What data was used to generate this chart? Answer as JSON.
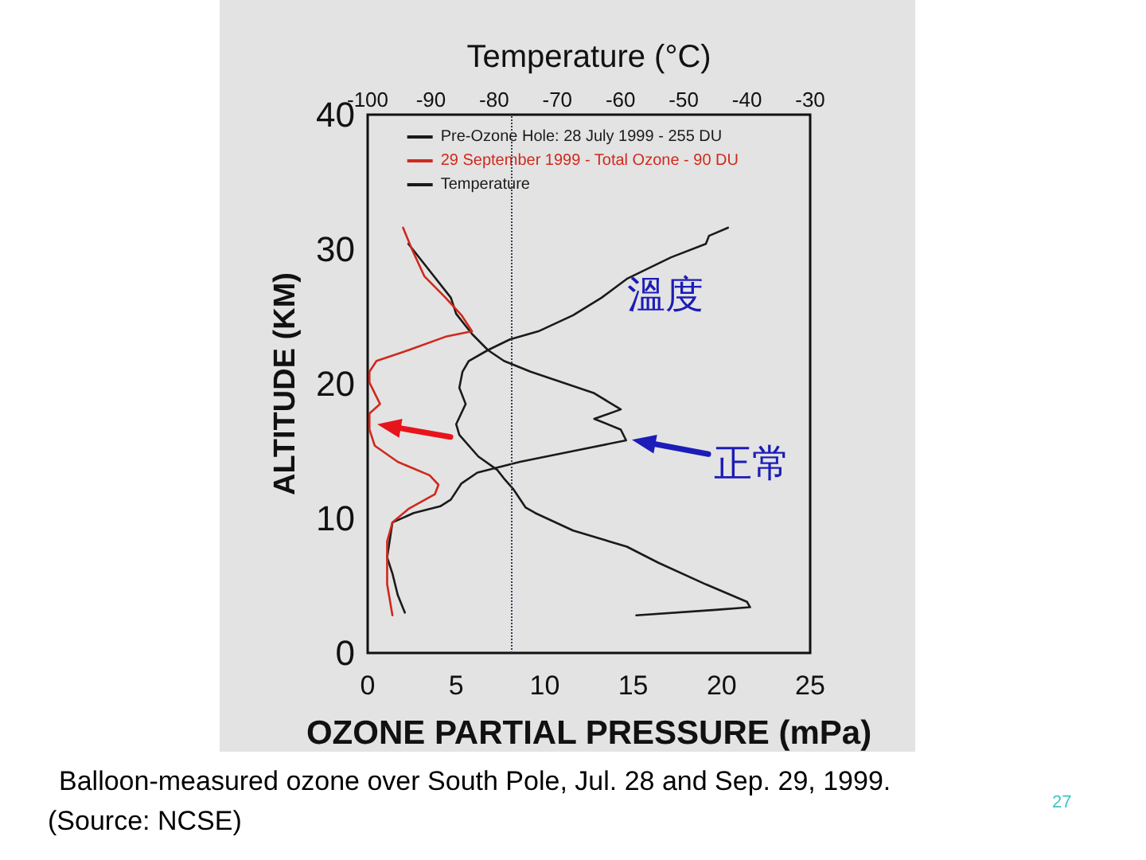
{
  "chart_data": {
    "type": "line",
    "xlabel": "OZONE PARTIAL PRESSURE (mPa)",
    "ylabel": "ALTITUDE (KM)",
    "x2label": "Temperature (°C)",
    "xlim": [
      0,
      25
    ],
    "xticks": [
      0,
      5,
      10,
      15,
      20,
      25
    ],
    "x2lim": [
      -100,
      -30
    ],
    "x2ticks": [
      -100,
      -90,
      -80,
      -70,
      -60,
      -50,
      -40,
      -30
    ],
    "ylim": [
      0,
      40
    ],
    "yticks": [
      0,
      10,
      20,
      30,
      40
    ],
    "legend": "top",
    "marker": "none",
    "line_style": "solid",
    "series": [
      {
        "name": "Pre-Ozone Hole: 28 July 1999 - 255 DU",
        "color": "#1a1a1a",
        "x": [
          2.3,
          3.5,
          4.7,
          5.0,
          5.9,
          6.8,
          7.7,
          9.2,
          11.0,
          12.8,
          14.3,
          12.8,
          14.3,
          14.6,
          11.6,
          8.6,
          6.2,
          5.3,
          4.7,
          4.1,
          2.6,
          1.4,
          1.1,
          1.4,
          1.7,
          2.1
        ],
        "values": [
          30.4,
          28.4,
          26.4,
          25.2,
          23.7,
          22.5,
          21.7,
          20.9,
          20.1,
          19.3,
          18.1,
          17.4,
          16.6,
          15.8,
          15.0,
          14.2,
          13.4,
          12.6,
          11.4,
          10.9,
          10.4,
          9.7,
          7.1,
          5.9,
          4.3,
          3.0
        ]
      },
      {
        "name": "29 September 1999 - Total Ozone - 90 DU",
        "color": "#d0281c",
        "x": [
          2.0,
          2.5,
          3.2,
          4.4,
          5.3,
          5.9,
          4.4,
          2.3,
          0.5,
          0.1,
          0.1,
          0.4,
          0.7,
          0.1,
          0.1,
          0.4,
          1.7,
          3.5,
          4.0,
          3.8,
          2.3,
          1.4,
          1.1,
          1.1,
          1.4
        ],
        "values": [
          31.6,
          30.0,
          28.0,
          26.4,
          25.1,
          23.9,
          23.5,
          22.5,
          21.7,
          20.9,
          20.1,
          19.3,
          18.5,
          17.8,
          16.6,
          15.4,
          14.2,
          13.2,
          12.5,
          11.8,
          10.7,
          9.7,
          8.3,
          5.1,
          2.8
        ]
      },
      {
        "name": "Temperature",
        "color": "#1a1a1a",
        "axis": "x2",
        "x": [
          -43,
          -46,
          -46.5,
          -52,
          -59,
          -63,
          -67.5,
          -73,
          -77.5,
          -81,
          -84,
          -85,
          -85.5,
          -84.5,
          -86,
          -85.5,
          -82.5,
          -79.5,
          -78.5,
          -77,
          -75,
          -73.5,
          -67.5,
          -59,
          -54,
          -46.5,
          -40,
          -39.5,
          -45,
          -57.5
        ],
        "values": [
          31.6,
          31.0,
          30.4,
          29.4,
          27.8,
          26.4,
          25.1,
          23.9,
          23.3,
          22.5,
          21.7,
          20.9,
          19.7,
          18.5,
          17.0,
          16.2,
          14.6,
          13.6,
          13.0,
          12.2,
          10.8,
          10.4,
          9.1,
          7.9,
          6.7,
          5.1,
          3.8,
          3.4,
          3.2,
          2.8
        ]
      }
    ],
    "ref_lines": [
      {
        "axis": "x",
        "value": 8.1,
        "line_style": "dotted",
        "color": "#3a3a55"
      }
    ],
    "annotations": [
      "溫度",
      {
        "text": "正常",
        "x": 14.6,
        "y": 15.8
      },
      "Balloon-measured ozone over South Pole, Jul. 28 and Sep. 29, 1999.",
      "(Source: NCSE)",
      "27"
    ]
  }
}
